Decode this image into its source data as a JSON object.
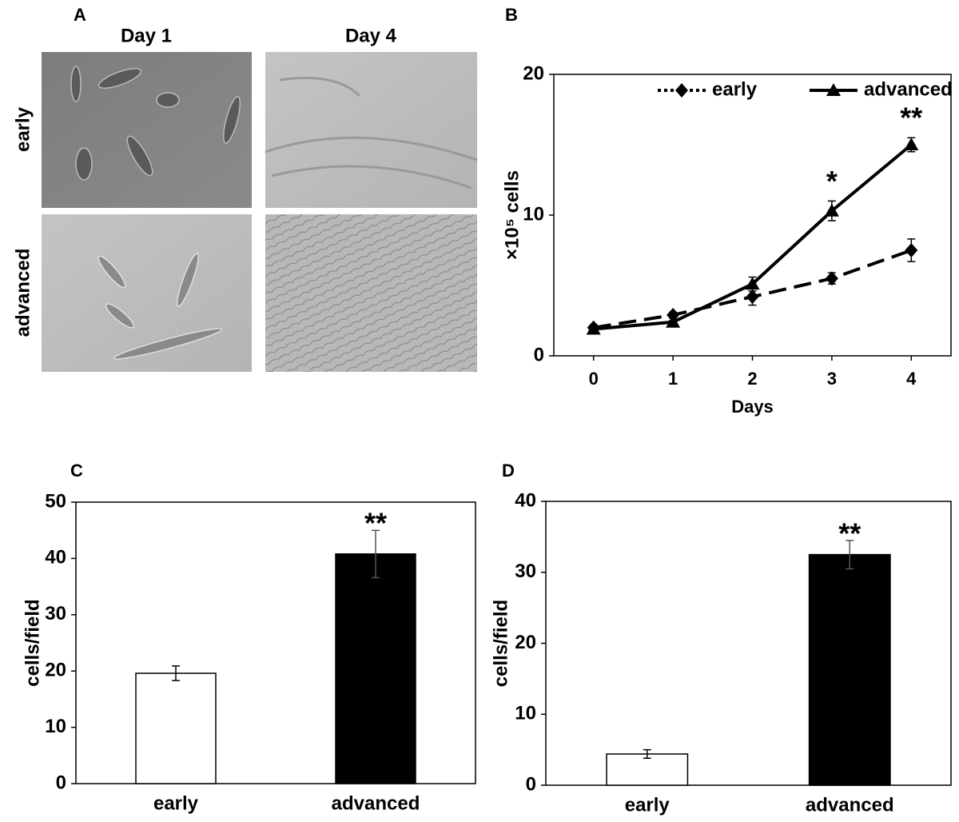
{
  "panel_a": {
    "label": "A",
    "columns": [
      "Day 1",
      "Day 4"
    ],
    "rows": [
      "early",
      "advanced"
    ]
  },
  "chart_data": [
    {
      "type": "line",
      "panel_label": "B",
      "xlabel": "Days",
      "ylabel": "×10⁵ cells",
      "x": [
        0,
        1,
        2,
        3,
        4
      ],
      "xlim": [
        -0.5,
        4.5
      ],
      "xticks": [
        0,
        1,
        2,
        3,
        4
      ],
      "ylim": [
        0,
        20
      ],
      "yticks": [
        0,
        10,
        20
      ],
      "grid": false,
      "legend": "upper right",
      "series": [
        {
          "name": "early",
          "color": "#000000",
          "line_style": "dashed",
          "marker": "diamond",
          "values": [
            2.0,
            2.9,
            4.2,
            5.5,
            7.5
          ],
          "errors": [
            0.2,
            0.2,
            0.6,
            0.4,
            0.8
          ]
        },
        {
          "name": "advanced",
          "color": "#000000",
          "line_style": "solid",
          "marker": "triangle",
          "values": [
            1.9,
            2.4,
            5.1,
            10.3,
            15.0
          ],
          "errors": [
            0.1,
            0.1,
            0.5,
            0.7,
            0.5
          ],
          "annotations": [
            null,
            null,
            null,
            "*",
            "**"
          ]
        }
      ]
    },
    {
      "type": "bar",
      "panel_label": "C",
      "ylabel": "cells/field",
      "categories": [
        "early",
        "advanced"
      ],
      "values": [
        19.6,
        40.8
      ],
      "errors": [
        1.3,
        4.2
      ],
      "colors": [
        "#ffffff",
        "#000000"
      ],
      "annotations": [
        null,
        "**"
      ],
      "ylim": [
        0,
        50
      ],
      "yticks": [
        0,
        10,
        20,
        30,
        40,
        50
      ],
      "grid": false
    },
    {
      "type": "bar",
      "panel_label": "D",
      "ylabel": "cells/field",
      "categories": [
        "early",
        "advanced"
      ],
      "values": [
        4.4,
        32.5
      ],
      "errors": [
        0.6,
        2.0
      ],
      "colors": [
        "#ffffff",
        "#000000"
      ],
      "annotations": [
        null,
        "**"
      ],
      "ylim": [
        0,
        40
      ],
      "yticks": [
        0,
        10,
        20,
        30,
        40
      ],
      "grid": false
    }
  ]
}
